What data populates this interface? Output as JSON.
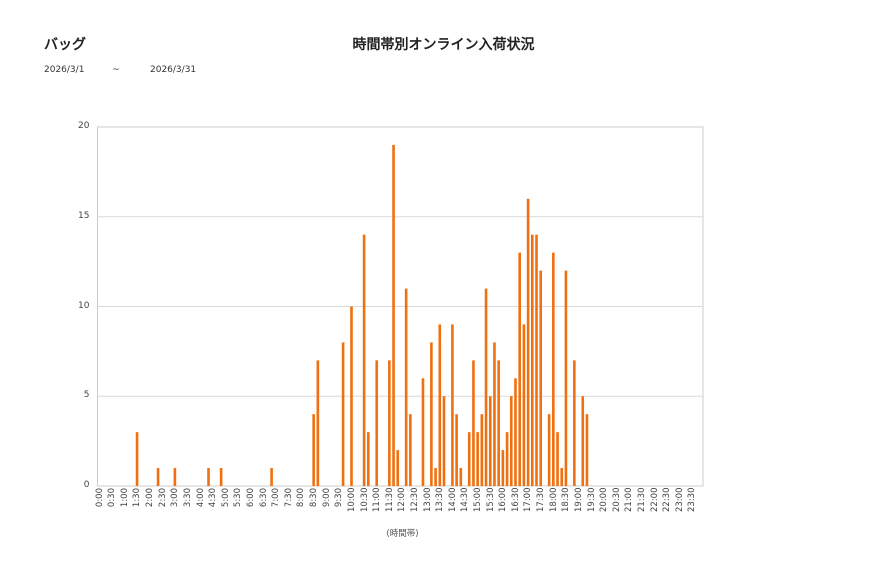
{
  "header": {
    "category": "バッグ",
    "title": "時間帯別オンライン入荷状況",
    "date_from": "2026/3/1",
    "date_sep": "~",
    "date_to": "2026/3/31"
  },
  "colors": {
    "bar": "#f07010",
    "grid": "#d9d9d9",
    "axis": "#cccccc"
  },
  "chart_data": {
    "type": "bar",
    "title": "時間帯別オンライン入荷状況",
    "xlabel": "(時間帯)",
    "ylabel": "",
    "ylim": [
      0,
      20
    ],
    "yticks": [
      0,
      5,
      10,
      15,
      20
    ],
    "grid": true,
    "legend": "none",
    "slot_minutes": 10,
    "xtick_labels": [
      "0:00",
      "0:30",
      "1:00",
      "1:30",
      "2:00",
      "2:30",
      "3:00",
      "3:30",
      "4:00",
      "4:30",
      "5:00",
      "5:30",
      "6:00",
      "6:30",
      "7:00",
      "7:30",
      "8:00",
      "8:30",
      "9:00",
      "9:30",
      "10:00",
      "10:30",
      "11:00",
      "11:30",
      "12:00",
      "12:30",
      "13:00",
      "13:30",
      "14:00",
      "14:30",
      "15:00",
      "15:30",
      "16:00",
      "16:30",
      "17:00",
      "17:30",
      "18:00",
      "18:30",
      "19:00",
      "19:30",
      "20:00",
      "20:30",
      "21:00",
      "21:30",
      "22:00",
      "22:30",
      "23:00",
      "23:30"
    ],
    "values": [
      0,
      0,
      0,
      0,
      0,
      0,
      0,
      0,
      0,
      3,
      0,
      0,
      0,
      0,
      1,
      0,
      0,
      0,
      1,
      0,
      0,
      0,
      0,
      0,
      0,
      0,
      1,
      0,
      0,
      1,
      0,
      0,
      0,
      0,
      0,
      0,
      0,
      0,
      0,
      0,
      0,
      1,
      0,
      0,
      0,
      0,
      0,
      0,
      0,
      0,
      0,
      4,
      7,
      0,
      0,
      0,
      0,
      0,
      8,
      0,
      10,
      0,
      0,
      14,
      3,
      0,
      7,
      0,
      0,
      7,
      19,
      2,
      0,
      11,
      4,
      0,
      0,
      6,
      0,
      8,
      1,
      9,
      5,
      0,
      9,
      4,
      1,
      0,
      3,
      7,
      3,
      4,
      11,
      5,
      8,
      7,
      2,
      3,
      5,
      6,
      13,
      9,
      16,
      14,
      14,
      12,
      0,
      4,
      13,
      3,
      1,
      12,
      0,
      7,
      0,
      5,
      4,
      0,
      0,
      0,
      0,
      0,
      0,
      0,
      0,
      0,
      0,
      0,
      0,
      0,
      0,
      0,
      0,
      0,
      0,
      0,
      0,
      0,
      0,
      0,
      0,
      0,
      0,
      0
    ]
  }
}
